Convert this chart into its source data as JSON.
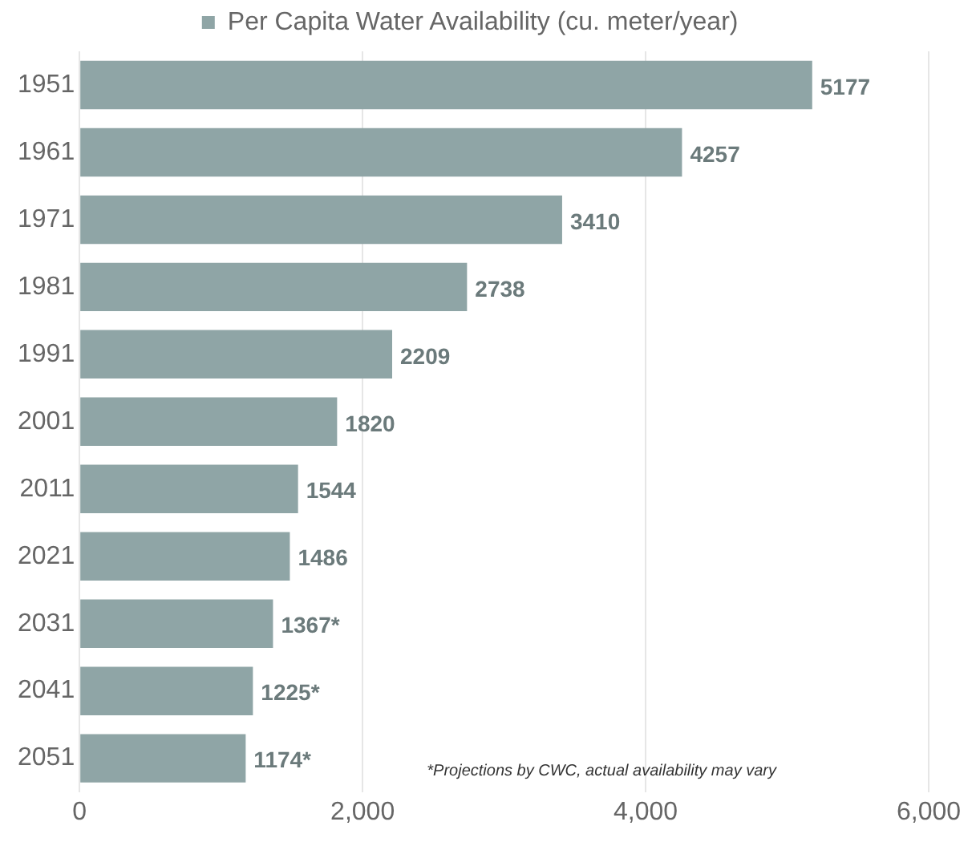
{
  "chart_data": {
    "type": "bar",
    "orientation": "horizontal",
    "categories": [
      "1951",
      "1961",
      "1971",
      "1981",
      "1991",
      "2001",
      "2011",
      "2021",
      "2031",
      "2041",
      "2051"
    ],
    "series": [
      {
        "name": "Per Capita Water Availability (cu. meter/year)",
        "color": "#8fa5a6",
        "values": [
          5177,
          4257,
          3410,
          2738,
          2209,
          1820,
          1544,
          1486,
          1367,
          1225,
          1174
        ],
        "value_labels": [
          "5177",
          "4257",
          "3410",
          "2738",
          "2209",
          "1820",
          "1544",
          "1486",
          "1367*",
          "1225*",
          "1174*"
        ]
      }
    ],
    "xlim": [
      0,
      6000
    ],
    "xticks": [
      0,
      {
        "value": 2000,
        "label": "2,000"
      },
      {
        "value": 4000,
        "label": "4,000"
      },
      {
        "value": 6000,
        "label": "6,000"
      }
    ],
    "grid": "x",
    "legend": "top",
    "annotations": [
      "*Projections by CWC, actual availability may vary"
    ]
  }
}
